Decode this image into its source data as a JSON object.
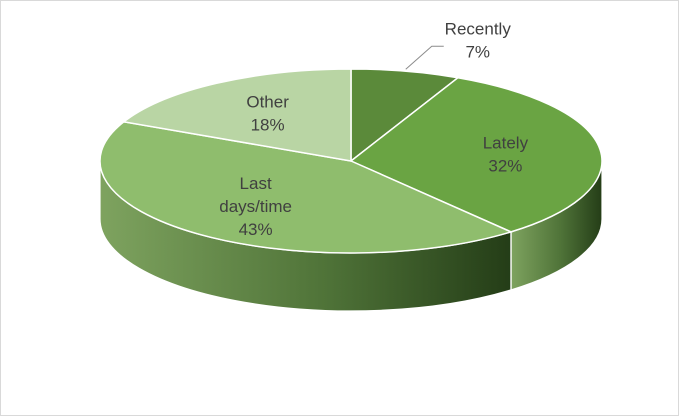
{
  "chart_data": {
    "type": "pie",
    "style": "3d",
    "legend": "none",
    "slices": [
      {
        "label": "Recently",
        "value": 7,
        "text": "7%",
        "color": "#5b8a3a"
      },
      {
        "label": "Lately",
        "value": 32,
        "text": "32%",
        "color": "#6aa443"
      },
      {
        "label": "Last days/time",
        "value": 43,
        "text": "43%",
        "color": "#8fbd6d"
      },
      {
        "label": "Other",
        "value": 18,
        "text": "18%",
        "color": "#b9d5a4"
      }
    ]
  }
}
